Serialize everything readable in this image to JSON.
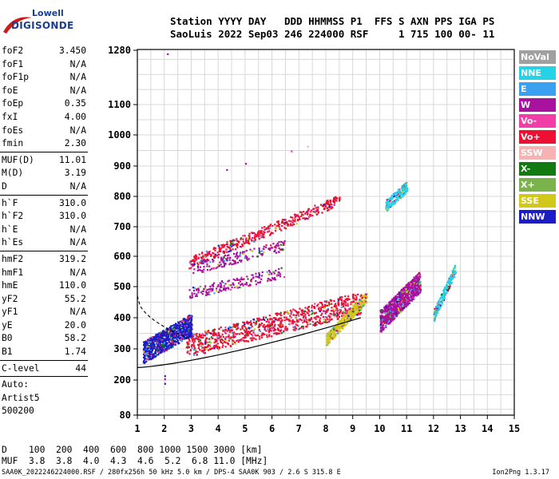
{
  "logo": {
    "line1": "Lowell",
    "line2": "DIGISONDE"
  },
  "header": {
    "line1": "Station YYYY DAY   DDD HHMMSS P1  FFS S AXN PPS IGA PS",
    "line2": "SaoLuis 2022 Sep03 246 224000 RSF     1 715 100 00- 11"
  },
  "params": [
    {
      "name": "foF2",
      "value": "3.450"
    },
    {
      "name": "foF1",
      "value": "N/A"
    },
    {
      "name": "foF1p",
      "value": "N/A"
    },
    {
      "name": "foE",
      "value": "N/A"
    },
    {
      "name": "foEp",
      "value": "0.35"
    },
    {
      "name": "fxI",
      "value": "4.00"
    },
    {
      "name": "foEs",
      "value": "N/A"
    },
    {
      "name": "fmin",
      "value": "2.30"
    },
    {
      "sep": true
    },
    {
      "name": "MUF(D)",
      "value": "11.01"
    },
    {
      "name": "M(D)",
      "value": "3.19"
    },
    {
      "name": "D",
      "value": "N/A"
    },
    {
      "sep": true
    },
    {
      "name": "h`F",
      "value": "310.0"
    },
    {
      "name": "h`F2",
      "value": "310.0"
    },
    {
      "name": "h`E",
      "value": "N/A"
    },
    {
      "name": "h`Es",
      "value": "N/A"
    },
    {
      "sep": true
    },
    {
      "name": "hmF2",
      "value": "319.2"
    },
    {
      "name": "hmF1",
      "value": "N/A"
    },
    {
      "name": "hmE",
      "value": "110.0"
    },
    {
      "name": "yF2",
      "value": "55.2"
    },
    {
      "name": "yF1",
      "value": "N/A"
    },
    {
      "name": "yE",
      "value": "20.0"
    },
    {
      "name": "B0",
      "value": "58.2"
    },
    {
      "name": "B1",
      "value": "1.74"
    },
    {
      "sep": true
    },
    {
      "name": "C-level",
      "value": "44"
    },
    {
      "sep": true
    },
    {
      "name": "Auto:",
      "value": ""
    },
    {
      "name": "Artist5",
      "value": ""
    },
    {
      "name": "500200",
      "value": ""
    }
  ],
  "bottom": {
    "line1": "D    100  200  400  600  800 1000 1500 3000 [km]",
    "line2": "MUF  3.8  3.8  4.0  4.3  4.6  5.2  6.8 11.0 [MHz]"
  },
  "footer": "SAA0K_2022246224000.RSF / 280fx256h 50 kHz 5.0 km / DPS-4 SAA0K 903 / 2.6 S 315.8 E",
  "version": "Ion2Png 1.3.17",
  "legend": [
    {
      "label": "NoVal",
      "color": "#a0a0a0"
    },
    {
      "label": "NNE",
      "color": "#26d3e6"
    },
    {
      "label": "E",
      "color": "#3aa0f0"
    },
    {
      "label": "W",
      "color": "#a8129e"
    },
    {
      "label": "Vo-",
      "color": "#f23ca8"
    },
    {
      "label": "Vo+",
      "color": "#ee1032"
    },
    {
      "label": "SSW",
      "color": "#f7b3b3"
    },
    {
      "label": "X-",
      "color": "#117a11"
    },
    {
      "label": "X+",
      "color": "#7ab34c"
    },
    {
      "label": "SSE",
      "color": "#d2c81a"
    },
    {
      "label": "NNW",
      "color": "#1b1bc8"
    }
  ],
  "chart_data": {
    "type": "scatter",
    "xlabel": "",
    "ylabel": "",
    "xlim": [
      1,
      15
    ],
    "ylim": [
      80,
      1280
    ],
    "x_ticks": [
      1,
      2,
      3,
      4,
      5,
      6,
      7,
      8,
      9,
      10,
      11,
      12,
      13,
      14,
      15
    ],
    "y_ticks": [
      80,
      200,
      300,
      400,
      500,
      600,
      700,
      800,
      900,
      1000,
      1100,
      1280
    ],
    "y_scale": "custom-ionogram",
    "grid": true,
    "clusters": [
      {
        "name": "O-trace 2-hop",
        "color_key": "Vo+",
        "x_range": [
          2.9,
          8.5
        ],
        "h_start": 580,
        "h_end": 790,
        "density": "medium"
      },
      {
        "name": "O-trace 1-hop",
        "color_key": "Vo+",
        "x_range": [
          2.8,
          9.3
        ],
        "h_start": 310,
        "h_end": 450,
        "density": "high"
      },
      {
        "name": "X-trace",
        "color_key": "SSE",
        "x_range": [
          8.0,
          9.5
        ],
        "h_start": 330,
        "h_end": 470,
        "density": "medium"
      },
      {
        "name": "W spread 600",
        "color_key": "W",
        "x_range": [
          3.0,
          6.5
        ],
        "h_start": 560,
        "h_end": 640,
        "density": "low"
      },
      {
        "name": "W spread 500",
        "color_key": "W",
        "x_range": [
          2.9,
          6.5
        ],
        "h_start": 480,
        "h_end": 550,
        "density": "low"
      },
      {
        "name": "NNW low cluster",
        "color_key": "NNW",
        "x_range": [
          1.2,
          3.0
        ],
        "h_start": 290,
        "h_end": 380,
        "density": "high"
      },
      {
        "name": "Spread F",
        "color_key": "W",
        "x_range": [
          10.0,
          11.5
        ],
        "h_start": 390,
        "h_end": 520,
        "density": "high"
      },
      {
        "name": "NNE sparse",
        "color_key": "NNE",
        "x_range": [
          12.0,
          12.8
        ],
        "h_start": 410,
        "h_end": 560,
        "density": "low"
      },
      {
        "name": "NNE top",
        "color_key": "NNE",
        "x_range": [
          10.2,
          11.0
        ],
        "h_start": 770,
        "h_end": 835,
        "density": "low"
      }
    ],
    "profile_curve": {
      "x_start": 1.0,
      "x_end": 9.3,
      "h_start": 240,
      "h_end": 400
    }
  }
}
